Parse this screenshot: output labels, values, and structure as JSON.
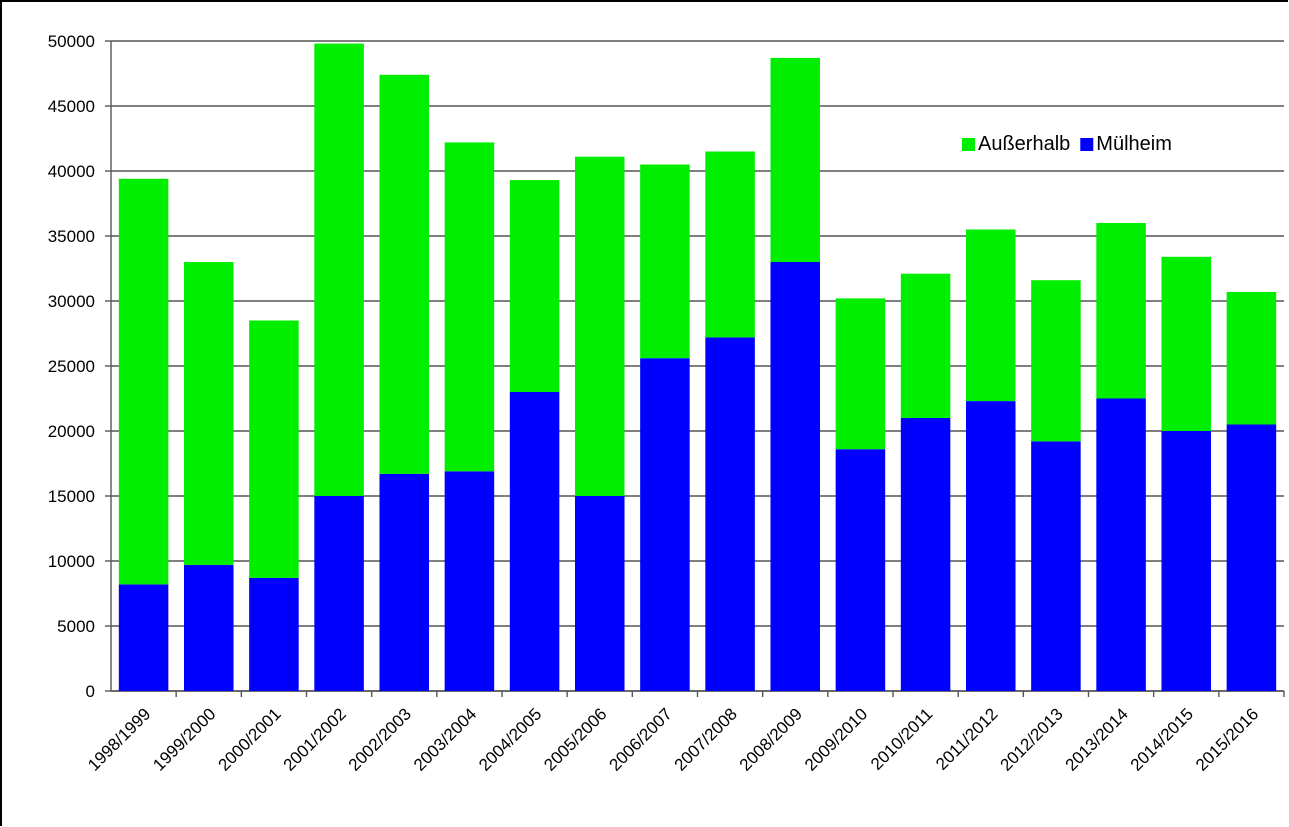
{
  "chart_data": {
    "type": "bar",
    "stacked": true,
    "categories": [
      "1998/1999",
      "1999/2000",
      "2000/2001",
      "2001/2002",
      "2002/2003",
      "2003/2004",
      "2004/2005",
      "2005/2006",
      "2006/2007",
      "2007/2008",
      "2008/2009",
      "2009/2010",
      "2010/2011",
      "2011/2012",
      "2012/2013",
      "2013/2014",
      "2014/2015",
      "2015/2016"
    ],
    "series": [
      {
        "name": "Mülheim",
        "color": "#0000ff",
        "values": [
          8200,
          9700,
          8700,
          15000,
          16700,
          16900,
          23000,
          15000,
          25600,
          27200,
          33000,
          18600,
          21000,
          22300,
          19200,
          22500,
          20000,
          20500
        ]
      },
      {
        "name": "Außerhalb",
        "color": "#00ee00",
        "values": [
          31200,
          23300,
          19800,
          34800,
          30700,
          25300,
          16300,
          26100,
          14900,
          14300,
          15700,
          11600,
          11100,
          13200,
          12400,
          13500,
          13400,
          10200
        ]
      }
    ],
    "yticks": [
      0,
      5000,
      10000,
      15000,
      20000,
      25000,
      30000,
      35000,
      40000,
      45000,
      50000
    ],
    "ylim": [
      0,
      50000
    ],
    "grid": true,
    "legend": {
      "position": "top-right",
      "items": [
        "Außerhalb",
        "Mülheim"
      ]
    },
    "title": "",
    "xlabel": "",
    "ylabel": ""
  }
}
